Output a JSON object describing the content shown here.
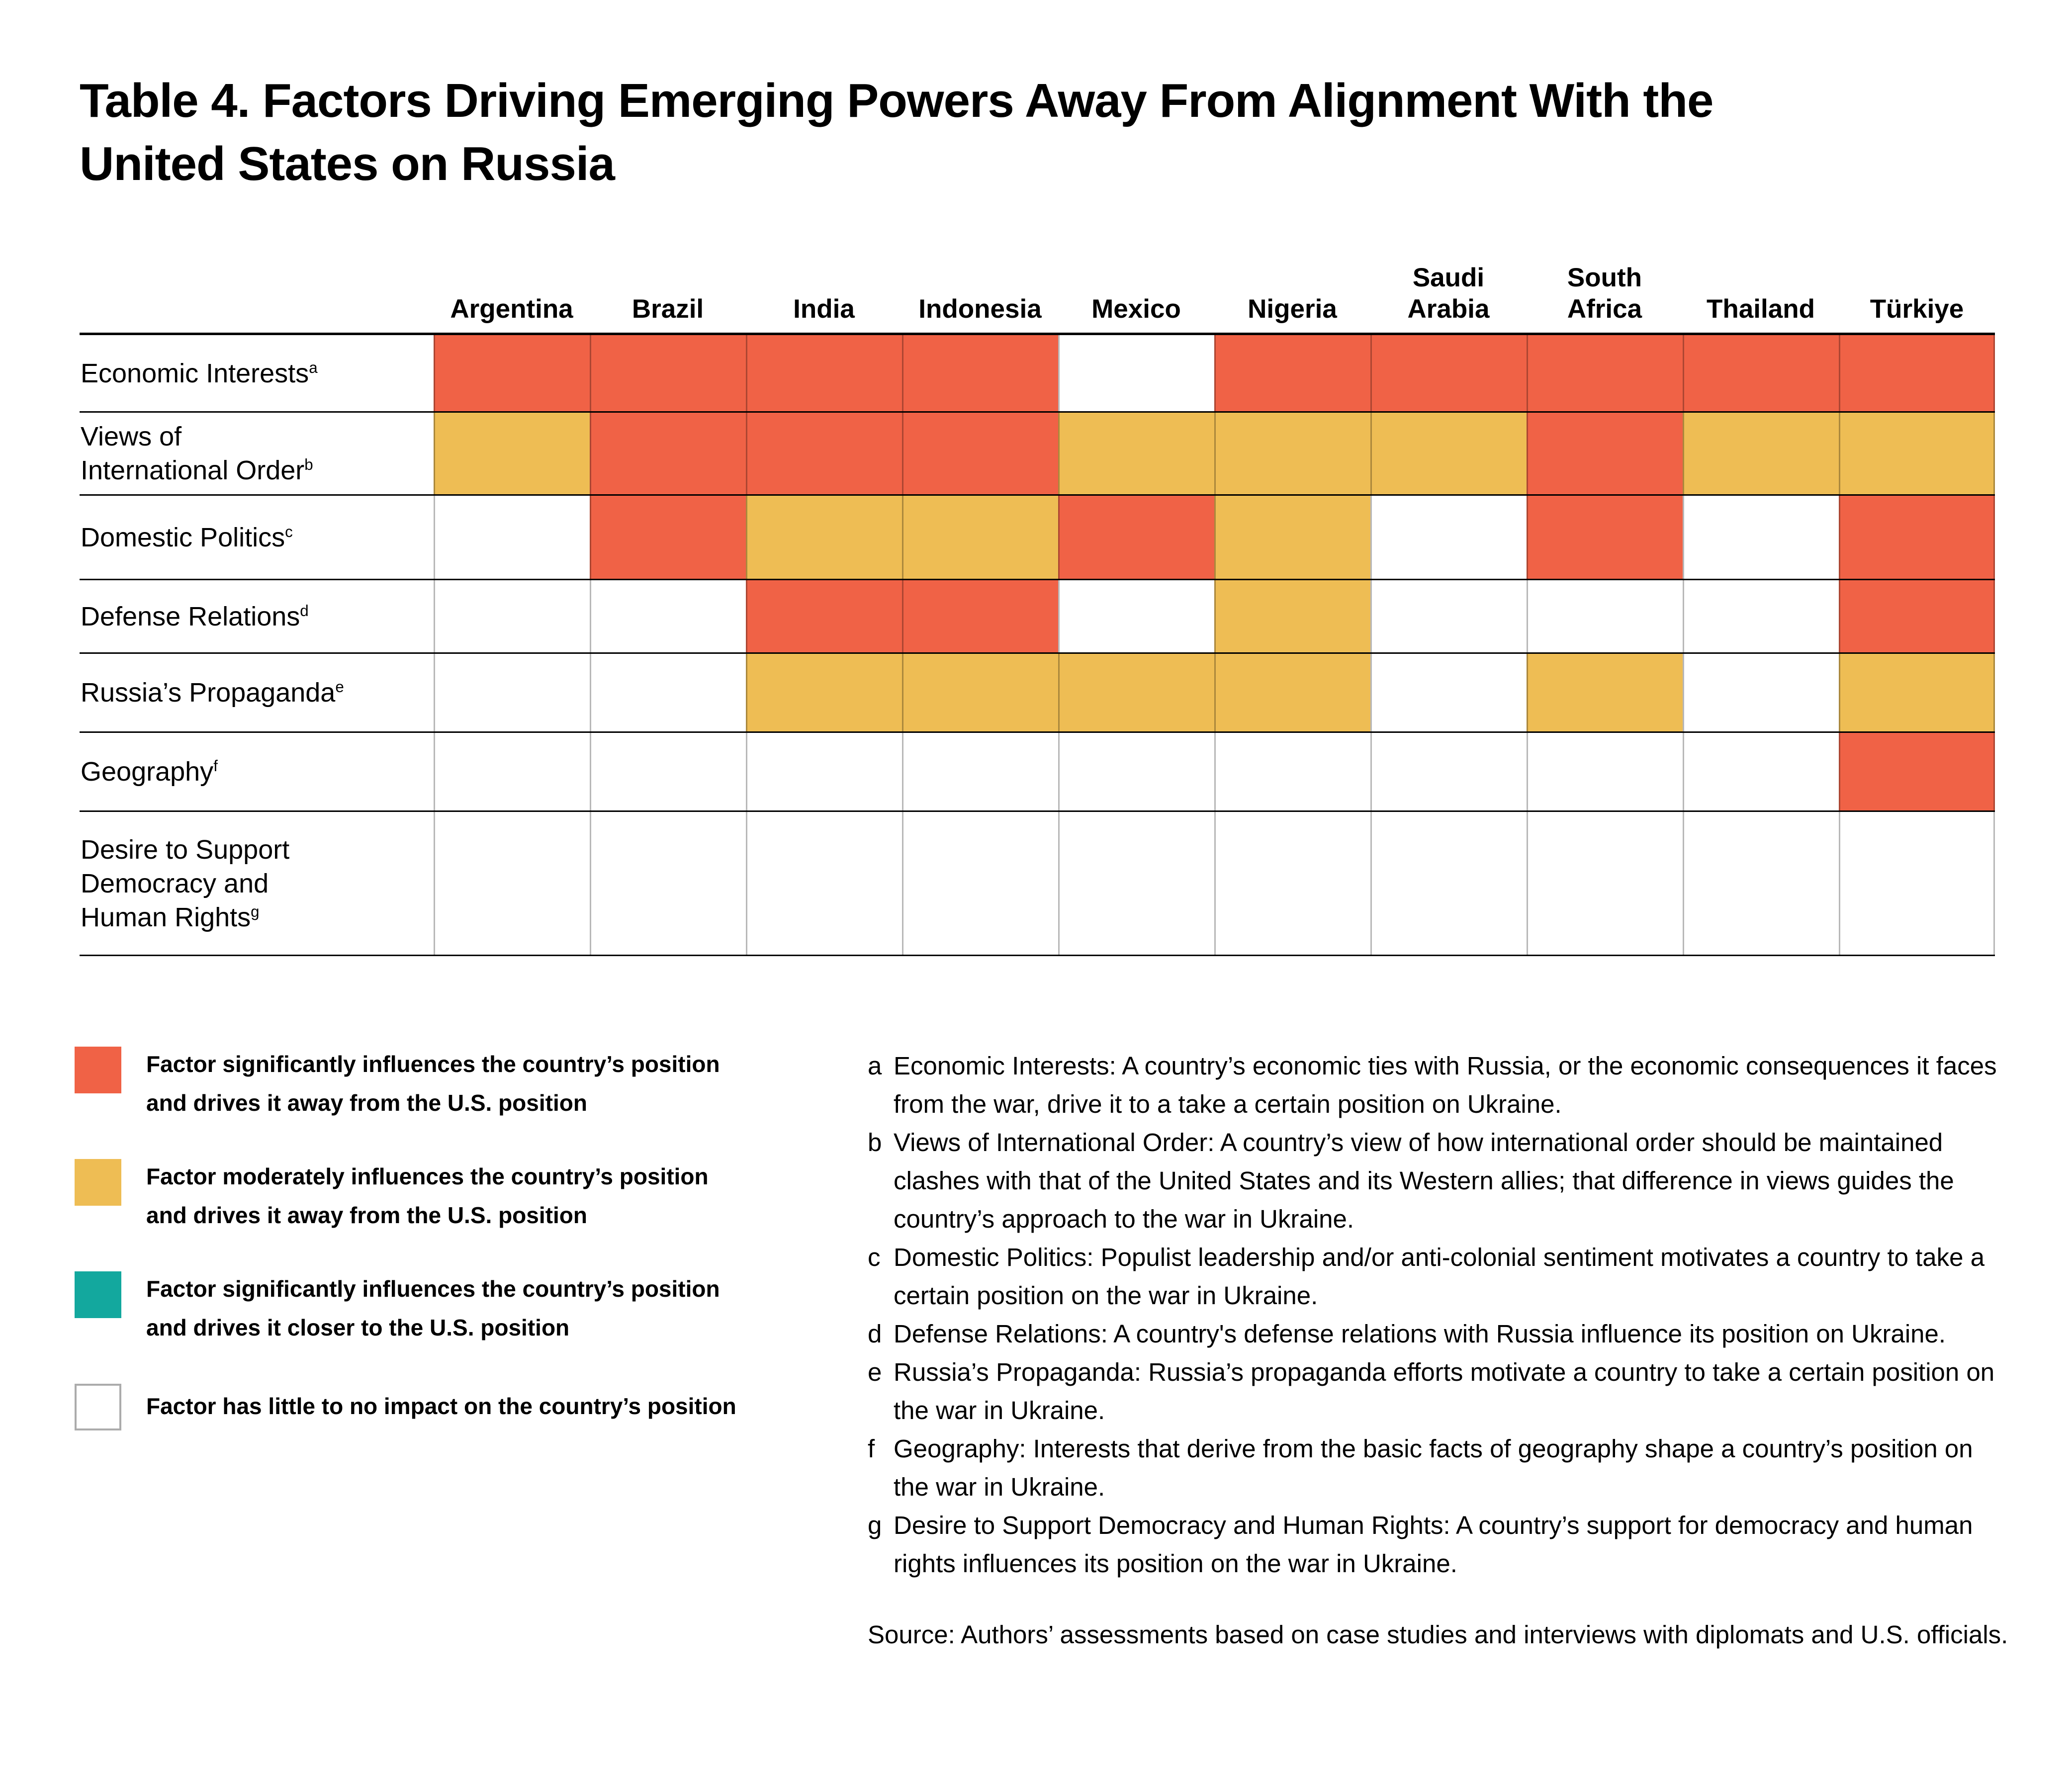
{
  "title": "Table 4. Factors Driving Emerging Powers Away From Alignment With the\nUnited States on Russia",
  "colors": {
    "S": "#F06246",
    "M": "#EEBD54",
    "C": "#13A89E",
    "N": "#FFFFFF",
    "swatch_border": "#ACACAC"
  },
  "chart_data": {
    "type": "heatmap",
    "title": "Table 4. Factors Driving Emerging Powers Away From Alignment With the United States on Russia",
    "columns": [
      "Argentina",
      "Brazil",
      "India",
      "Indonesia",
      "Mexico",
      "Nigeria",
      "Saudi Arabia",
      "South Africa",
      "Thailand",
      "Türkiye"
    ],
    "rows": [
      "Economic Interests",
      "Views of International Order",
      "Domestic Politics",
      "Defense Relations",
      "Russia's Propaganda",
      "Geography",
      "Desire to Support Democracy and Human Rights"
    ],
    "values": [
      [
        "S",
        "S",
        "S",
        "S",
        "N",
        "S",
        "S",
        "S",
        "S",
        "S"
      ],
      [
        "M",
        "S",
        "S",
        "S",
        "M",
        "M",
        "M",
        "S",
        "M",
        "M"
      ],
      [
        "N",
        "S",
        "M",
        "M",
        "S",
        "M",
        "N",
        "S",
        "N",
        "S"
      ],
      [
        "N",
        "N",
        "S",
        "S",
        "N",
        "M",
        "N",
        "N",
        "N",
        "S"
      ],
      [
        "N",
        "N",
        "M",
        "M",
        "M",
        "M",
        "N",
        "M",
        "N",
        "M"
      ],
      [
        "N",
        "N",
        "N",
        "N",
        "N",
        "N",
        "N",
        "N",
        "N",
        "S"
      ],
      [
        "N",
        "N",
        "N",
        "N",
        "N",
        "N",
        "N",
        "N",
        "N",
        "N"
      ]
    ],
    "value_legend": {
      "S": "Factor significantly influences the country's position and drives it away from the U.S. position",
      "M": "Factor moderately influences the country's position and drives it away from the U.S. position",
      "C": "Factor significantly influences the country's position and drives it closer to the U.S. position",
      "N": "Factor has little to no impact on the country's position"
    },
    "legend_position": "bottom-left",
    "grid": true
  },
  "table": {
    "column_lines": [
      [
        "Argentina"
      ],
      [
        "Brazil"
      ],
      [
        "India"
      ],
      [
        "Indonesia"
      ],
      [
        "Mexico"
      ],
      [
        "Nigeria"
      ],
      [
        "Saudi",
        "Arabia"
      ],
      [
        "South",
        "Africa"
      ],
      [
        "Thailand"
      ],
      [
        "Türkiye"
      ]
    ],
    "row_labels": [
      {
        "lines": [
          "Economic Interests"
        ],
        "sup": "a"
      },
      {
        "lines": [
          "Views of",
          "International Order"
        ],
        "sup": "b"
      },
      {
        "lines": [
          "Domestic Politics"
        ],
        "sup": "c"
      },
      {
        "lines": [
          "Defense Relations"
        ],
        "sup": "d"
      },
      {
        "lines": [
          "Russia’s Propaganda"
        ],
        "sup": "e"
      },
      {
        "lines": [
          "Geography"
        ],
        "sup": "f"
      },
      {
        "lines": [
          "Desire to Support",
          "Democracy and",
          "Human Rights"
        ],
        "sup": "g"
      }
    ]
  },
  "legend": [
    {
      "key": "S",
      "text": "Factor significantly influences the country’s position\nand drives it away from the U.S. position"
    },
    {
      "key": "M",
      "text": "Factor moderately influences the country’s position\nand drives it away from the U.S. position"
    },
    {
      "key": "C",
      "text": "Factor significantly influences the country’s position\nand drives it closer to the U.S. position"
    },
    {
      "key": "N",
      "text": "Factor has little to no impact on the country’s position"
    }
  ],
  "footnotes": [
    {
      "marker": "a",
      "text": "Economic Interests: A country’s economic ties with Russia, or the economic consequences it faces from the war, drive it to a take a certain position on Ukraine."
    },
    {
      "marker": "b",
      "text": "Views of International Order: A country’s view of how international order should be maintained clashes with that of the United States and its Western allies; that difference in views guides the country’s approach to the war in Ukraine."
    },
    {
      "marker": "c",
      "text": "Domestic Politics: Populist leadership and/or anti-colonial sentiment motivates a country to take a certain position on the war in Ukraine."
    },
    {
      "marker": "d",
      "text": "Defense Relations: A country's defense relations with Russia influence its position on Ukraine."
    },
    {
      "marker": "e",
      "text": "Russia’s Propaganda: Russia’s propaganda efforts motivate a country to take a certain position on the war in Ukraine."
    },
    {
      "marker": "f",
      "text": "Geography: Interests that derive from the basic facts of geography shape a country’s position on the war in Ukraine."
    },
    {
      "marker": "g",
      "text": "Desire to Support Democracy and Human Rights: A country’s support for democracy and human rights influences its position on the war in Ukraine."
    }
  ],
  "source": "Source: Authors’ assessments based on case studies and interviews with diplomats and U.S. officials."
}
